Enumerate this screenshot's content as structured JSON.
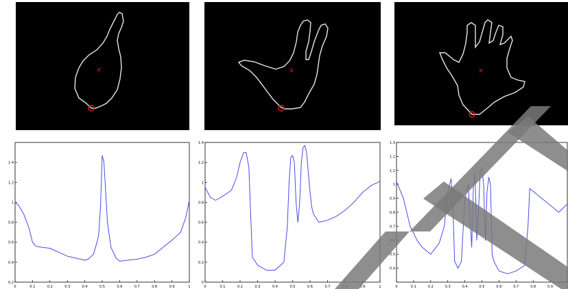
{
  "figure": {
    "hand_panels": [
      {
        "id": "hand-1"
      },
      {
        "id": "hand-2"
      },
      {
        "id": "hand-3"
      }
    ],
    "colors": {
      "contour": "#e6e6e6",
      "marker": "#e0191f",
      "curve": "#4a4ae6",
      "axis": "#000000",
      "watermark": "#7a7a7a"
    },
    "markers": {
      "centroid": "x",
      "start_point": "o"
    }
  },
  "chart_data": [
    {
      "type": "line",
      "title": "",
      "xlabel": "",
      "ylabel": "",
      "xlim": [
        0,
        1
      ],
      "ylim": [
        0.2,
        1.6
      ],
      "xticks": [
        "0",
        "0.1",
        "0.2",
        "0.3",
        "0.4",
        "0.5",
        "0.6",
        "0.7",
        "0.8",
        "0.9",
        "1"
      ],
      "yticks": [
        "0.2",
        "0.4",
        "0.6",
        "0.8",
        "1",
        "1.2",
        "1.4"
      ],
      "series": [
        {
          "x": [
            0,
            0.02,
            0.05,
            0.08,
            0.1,
            0.12,
            0.15,
            0.2,
            0.25,
            0.3,
            0.35,
            0.4,
            0.42,
            0.45,
            0.47,
            0.48,
            0.49,
            0.5,
            0.51,
            0.52,
            0.53,
            0.55,
            0.58,
            0.6,
            0.65,
            0.7,
            0.75,
            0.8,
            0.85,
            0.9,
            0.95,
            0.98,
            1.0
          ],
          "y": [
            1.0,
            0.97,
            0.88,
            0.74,
            0.6,
            0.56,
            0.55,
            0.54,
            0.5,
            0.46,
            0.44,
            0.42,
            0.43,
            0.48,
            0.6,
            0.68,
            0.95,
            1.47,
            1.4,
            1.1,
            0.8,
            0.55,
            0.44,
            0.41,
            0.42,
            0.43,
            0.45,
            0.48,
            0.55,
            0.62,
            0.7,
            0.85,
            1.02
          ]
        }
      ]
    },
    {
      "type": "line",
      "title": "",
      "xlabel": "",
      "ylabel": "",
      "xlim": [
        0,
        1
      ],
      "ylim": [
        0,
        1.4
      ],
      "xticks": [
        "0",
        "0.1",
        "0.2",
        "0.3",
        "0.4",
        "0.5",
        "0.6",
        "0.7",
        "0.8",
        "0.9",
        "1"
      ],
      "yticks": [
        "0",
        "0.2",
        "0.4",
        "0.6",
        "0.8",
        "1",
        "1.2",
        "1.4"
      ],
      "series": [
        {
          "x": [
            0,
            0.03,
            0.06,
            0.1,
            0.15,
            0.18,
            0.2,
            0.22,
            0.235,
            0.25,
            0.26,
            0.27,
            0.3,
            0.35,
            0.4,
            0.45,
            0.47,
            0.48,
            0.49,
            0.5,
            0.51,
            0.52,
            0.53,
            0.54,
            0.55,
            0.56,
            0.57,
            0.58,
            0.59,
            0.6,
            0.61,
            0.62,
            0.65,
            0.7,
            0.75,
            0.8,
            0.85,
            0.9,
            0.95,
            1.0
          ],
          "y": [
            0.95,
            0.85,
            0.82,
            0.86,
            0.92,
            1.05,
            1.2,
            1.3,
            1.3,
            1.15,
            0.7,
            0.25,
            0.17,
            0.12,
            0.12,
            0.2,
            0.55,
            1.0,
            1.25,
            1.27,
            1.2,
            0.8,
            0.6,
            0.78,
            1.2,
            1.35,
            1.37,
            1.3,
            1.1,
            0.9,
            0.75,
            0.68,
            0.6,
            0.62,
            0.66,
            0.72,
            0.8,
            0.9,
            0.97,
            1.01
          ]
        }
      ]
    },
    {
      "type": "line",
      "title": "",
      "xlabel": "",
      "ylabel": "",
      "xlim": [
        0,
        1
      ],
      "ylim": [
        0.3,
        1.3
      ],
      "xticks": [
        "0",
        "0.1",
        "0.2",
        "0.3",
        "0.4",
        "0.5",
        "0.6",
        "0.7",
        "0.8",
        "0.9",
        "1"
      ],
      "yticks": [
        "0.4",
        "0.5",
        "0.6",
        "0.7",
        "0.8",
        "0.9",
        "1",
        "1.1",
        "1.2",
        "1.3"
      ],
      "series": [
        {
          "x": [
            0,
            0.04,
            0.08,
            0.12,
            0.15,
            0.2,
            0.25,
            0.28,
            0.3,
            0.32,
            0.33,
            0.34,
            0.36,
            0.38,
            0.4,
            0.42,
            0.44,
            0.45,
            0.46,
            0.47,
            0.48,
            0.49,
            0.5,
            0.51,
            0.52,
            0.53,
            0.54,
            0.55,
            0.56,
            0.57,
            0.6,
            0.65,
            0.7,
            0.75,
            0.77,
            0.78,
            0.8,
            0.85,
            0.9,
            0.95,
            1.0
          ],
          "y": [
            1.02,
            0.9,
            0.7,
            0.6,
            0.55,
            0.5,
            0.58,
            0.7,
            0.95,
            1.04,
            0.85,
            0.45,
            0.4,
            0.45,
            0.9,
            1.0,
            0.55,
            0.98,
            1.08,
            0.6,
            0.8,
            1.1,
            1.12,
            1.0,
            0.6,
            0.95,
            1.05,
            1.0,
            0.5,
            0.45,
            0.38,
            0.36,
            0.38,
            0.42,
            0.7,
            0.97,
            0.95,
            0.9,
            0.85,
            0.8,
            0.86
          ]
        }
      ]
    }
  ]
}
